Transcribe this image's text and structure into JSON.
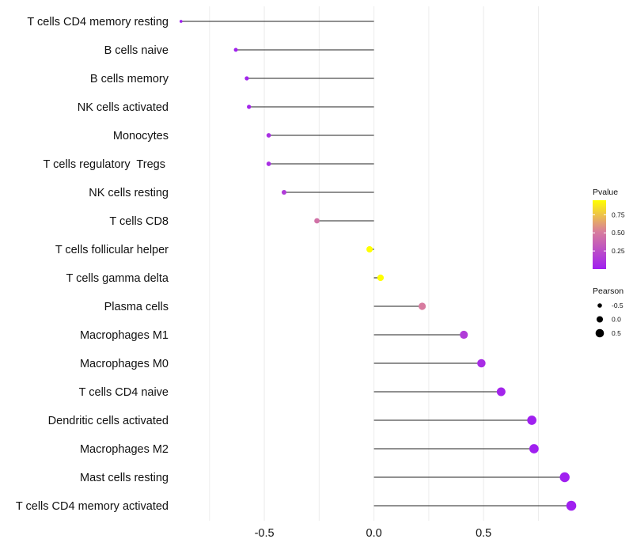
{
  "chart_data": {
    "type": "lollipop",
    "orientation": "horizontal",
    "title": "",
    "xlabel": "",
    "ylabel": "",
    "xlim": [
      -0.89,
      0.9
    ],
    "x_ticks": [
      -0.5,
      0.0,
      0.5
    ],
    "x_tick_labels": [
      "-0.5",
      "0.0",
      "0.5"
    ],
    "baseline": 0.0,
    "grid": "vertical major and minor",
    "categories": [
      "T cells CD4 memory resting",
      "B cells naive",
      "B cells memory",
      "NK cells activated",
      "Monocytes",
      "T cells regulatory  Tregs ",
      "NK cells resting",
      "T cells CD8",
      "T cells follicular helper",
      "T cells gamma delta",
      "Plasma cells",
      "Macrophages M1",
      "Macrophages M0",
      "T cells CD4 naive",
      "Dendritic cells activated",
      "Macrophages M2",
      "Mast cells resting",
      "T cells CD4 memory activated"
    ],
    "pearson": [
      -0.88,
      -0.63,
      -0.58,
      -0.57,
      -0.48,
      -0.48,
      -0.41,
      -0.26,
      -0.02,
      0.03,
      0.22,
      0.41,
      0.49,
      0.58,
      0.72,
      0.73,
      0.87,
      0.9
    ],
    "pvalue": [
      0.001,
      0.01,
      0.02,
      0.03,
      0.08,
      0.08,
      0.15,
      0.45,
      0.95,
      0.95,
      0.5,
      0.15,
      0.07,
      0.03,
      0.003,
      0.002,
      0.0005,
      0.0002
    ],
    "color_legend": {
      "title": "Pvalue",
      "ticks": [
        0.25,
        0.5,
        0.75
      ],
      "tick_labels": [
        "0.25",
        "0.50",
        "0.75"
      ],
      "range": [
        0.0,
        0.95
      ],
      "low_color": "#a020f0",
      "mid_color": "#d97f9b",
      "high_color": "#ffff00"
    },
    "size_legend": {
      "title": "Pearson",
      "values": [
        -0.5,
        0.0,
        0.5
      ],
      "labels": [
        "-0.5",
        "0.0",
        "0.5"
      ],
      "placement": "right"
    }
  }
}
